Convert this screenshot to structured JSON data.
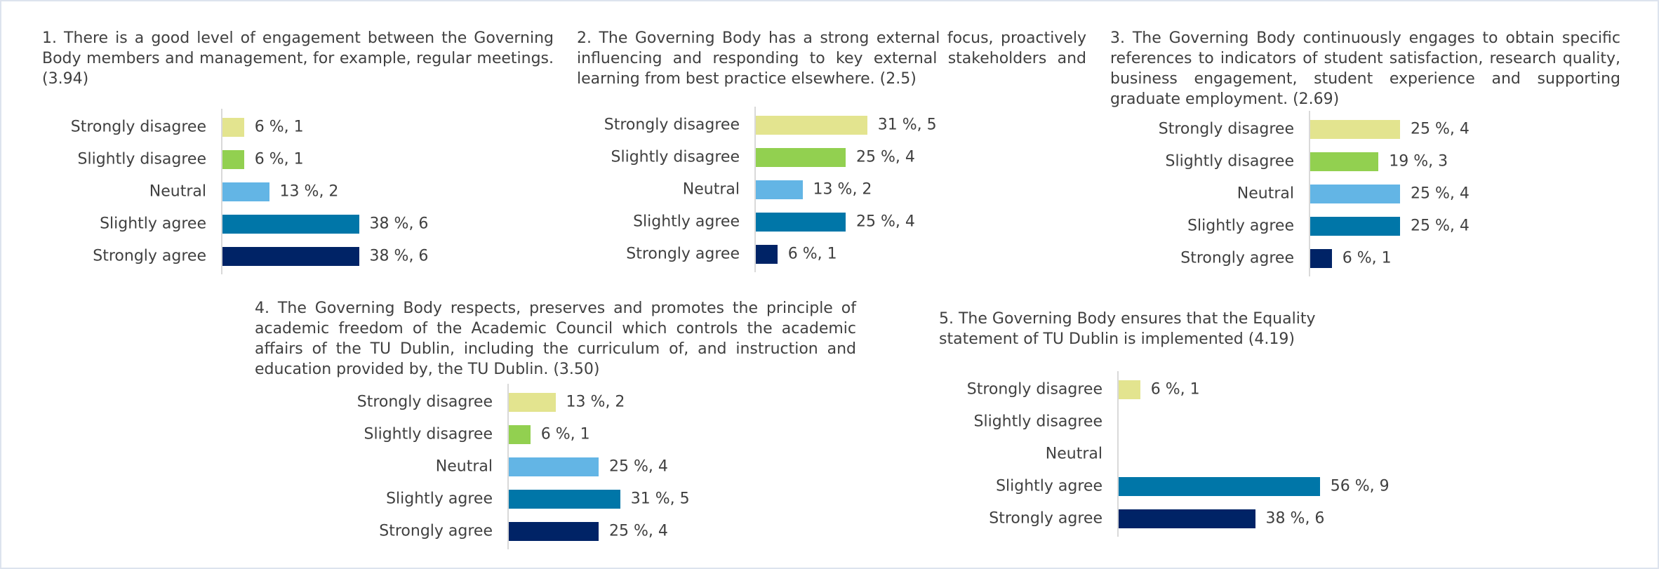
{
  "chart_data": [
    {
      "type": "barh",
      "title": "1. There is a good level of engagement between the Governing Body members and management, for example, regular meetings. (3.94)",
      "categories": [
        "Strongly disagree",
        "Slightly disagree",
        "Neutral",
        "Slightly agree",
        "Strongly agree"
      ],
      "values": [
        6,
        6,
        13,
        38,
        38
      ],
      "value_labels": [
        "6 %, 1",
        "6 %, 1",
        "13 %, 2",
        "38 %, 6",
        "38 %, 6"
      ],
      "colors": [
        "#e3e48f",
        "#92d050",
        "#63b5e5",
        "#0076a8",
        "#002366"
      ]
    },
    {
      "type": "barh",
      "title": "2. The Governing Body has a strong external focus, proactively influencing and responding to key external stakeholders and learning from best practice elsewhere. (2.5)",
      "categories": [
        "Strongly disagree",
        "Slightly disagree",
        "Neutral",
        "Slightly agree",
        "Strongly agree"
      ],
      "values": [
        31,
        25,
        13,
        25,
        6
      ],
      "value_labels": [
        "31 %, 5",
        "25 %, 4",
        "13 %, 2",
        "25 %, 4",
        "6 %, 1"
      ],
      "colors": [
        "#e3e48f",
        "#92d050",
        "#63b5e5",
        "#0076a8",
        "#002366"
      ]
    },
    {
      "type": "barh",
      "title": "3. The Governing Body continuously engages to obtain specific references to indicators of student satisfaction, research quality, business engagement, student experience and supporting graduate employment. (2.69)",
      "categories": [
        "Strongly disagree",
        "Slightly disagree",
        "Neutral",
        "Slightly agree",
        "Strongly agree"
      ],
      "values": [
        25,
        19,
        25,
        25,
        6
      ],
      "value_labels": [
        "25 %, 4",
        "19 %, 3",
        "25 %, 4",
        "25 %, 4",
        "6 %, 1"
      ],
      "colors": [
        "#e3e48f",
        "#92d050",
        "#63b5e5",
        "#0076a8",
        "#002366"
      ]
    },
    {
      "type": "barh",
      "title": "4. The Governing Body respects, preserves and promotes the principle of academic freedom of the Academic Council which controls the academic affairs of the TU Dublin, including the curriculum of, and instruction and education provided by, the TU Dublin. (3.50)",
      "categories": [
        "Strongly disagree",
        "Slightly disagree",
        "Neutral",
        "Slightly agree",
        "Strongly agree"
      ],
      "values": [
        13,
        6,
        25,
        31,
        25
      ],
      "value_labels": [
        "13 %, 2",
        "6 %, 1",
        "25 %, 4",
        "31 %, 5",
        "25 %, 4"
      ],
      "colors": [
        "#e3e48f",
        "#92d050",
        "#63b5e5",
        "#0076a8",
        "#002366"
      ]
    },
    {
      "type": "barh",
      "title": "5. The Governing Body ensures that the Equality statement of TU Dublin is implemented (4.19)",
      "categories": [
        "Strongly disagree",
        "Slightly disagree",
        "Neutral",
        "Slightly agree",
        "Strongly agree"
      ],
      "values": [
        6,
        null,
        null,
        56,
        38
      ],
      "value_labels": [
        "6 %, 1",
        null,
        null,
        "56 %, 9",
        "38 %, 6"
      ],
      "colors": [
        "#e3e48f",
        "#92d050",
        "#63b5e5",
        "#0076a8",
        "#002366"
      ]
    }
  ]
}
